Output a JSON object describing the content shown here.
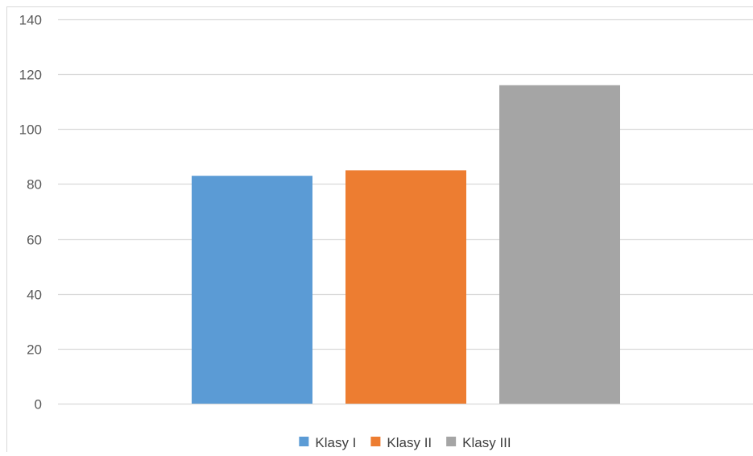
{
  "chart_data": {
    "type": "bar",
    "title": "",
    "xlabel": "",
    "ylabel": "",
    "ylim": [
      0,
      140
    ],
    "yticks": [
      0,
      20,
      40,
      60,
      80,
      100,
      120,
      140
    ],
    "grid": true,
    "legend_position": "bottom",
    "series": [
      {
        "name": "Klasy I",
        "value": 83,
        "color": "#5B9BD5"
      },
      {
        "name": "Klasy II",
        "value": 85,
        "color": "#ED7D31"
      },
      {
        "name": "Klasy III",
        "value": 116,
        "color": "#A5A5A5"
      }
    ]
  }
}
